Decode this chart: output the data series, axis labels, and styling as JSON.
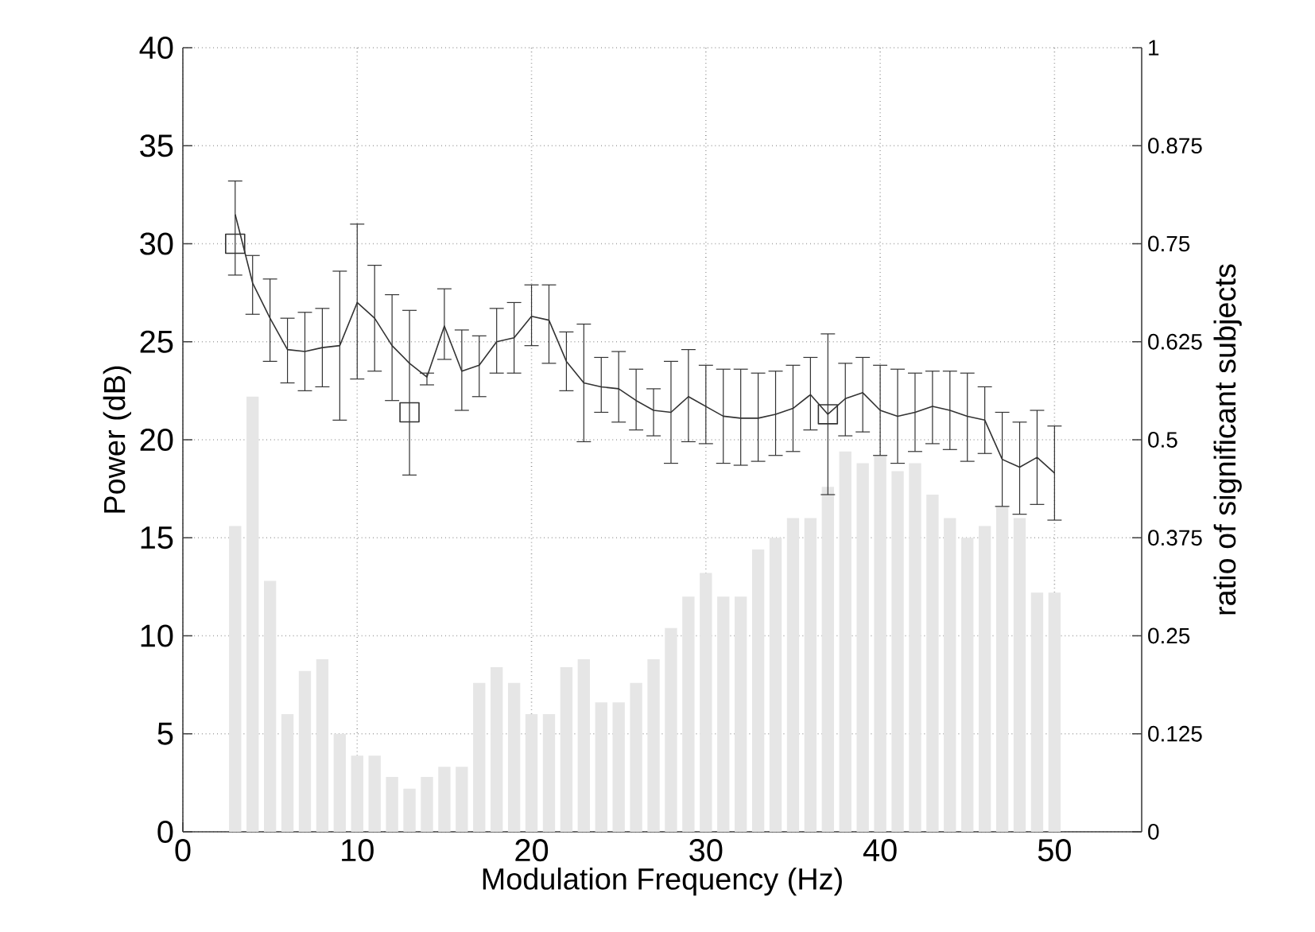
{
  "chart_data": {
    "type": "line",
    "xlabel": "Modulation Frequency (Hz)",
    "ylabel": "Power (dB)",
    "y2label": "ratio of significant subjects",
    "xlim": [
      0,
      55
    ],
    "xticks": [
      0,
      10,
      20,
      30,
      40,
      50
    ],
    "ylim": [
      0,
      40
    ],
    "yticks": [
      0,
      5,
      10,
      15,
      20,
      25,
      30,
      35,
      40
    ],
    "y2lim": [
      0,
      1
    ],
    "y2ticks": [
      0,
      0.125,
      0.25,
      0.375,
      0.5,
      0.625,
      0.75,
      0.875,
      1
    ],
    "grid": true,
    "series": [
      {
        "type": "bar",
        "axis": "y2",
        "color": "#e6e6e6",
        "x": [
          3,
          4,
          5,
          6,
          7,
          8,
          9,
          10,
          11,
          12,
          13,
          14,
          15,
          16,
          17,
          18,
          19,
          20,
          21,
          22,
          23,
          24,
          25,
          26,
          27,
          28,
          29,
          30,
          31,
          32,
          33,
          34,
          35,
          36,
          37,
          38,
          39,
          40,
          41,
          42,
          43,
          44,
          45,
          46,
          47,
          48,
          49,
          50
        ],
        "values": [
          0.39,
          0.555,
          0.32,
          0.15,
          0.205,
          0.22,
          0.125,
          0.097,
          0.097,
          0.07,
          0.055,
          0.07,
          0.083,
          0.083,
          0.19,
          0.21,
          0.19,
          0.15,
          0.15,
          0.21,
          0.22,
          0.165,
          0.165,
          0.19,
          0.22,
          0.26,
          0.3,
          0.33,
          0.3,
          0.3,
          0.36,
          0.375,
          0.4,
          0.4,
          0.44,
          0.485,
          0.47,
          0.48,
          0.46,
          0.47,
          0.43,
          0.4,
          0.375,
          0.39,
          0.415,
          0.4,
          0.305,
          0.305
        ]
      },
      {
        "color": "#333333",
        "marker": "none",
        "line_style": "solid",
        "x": [
          3,
          4,
          5,
          6,
          7,
          8,
          9,
          10,
          11,
          12,
          13,
          14,
          15,
          16,
          17,
          18,
          19,
          20,
          21,
          22,
          23,
          24,
          25,
          26,
          27,
          28,
          29,
          30,
          31,
          32,
          33,
          34,
          35,
          36,
          37,
          38,
          39,
          40,
          41,
          42,
          43,
          44,
          45,
          46,
          47,
          48,
          49,
          50
        ],
        "values": [
          31.5,
          28.0,
          26.2,
          24.6,
          24.5,
          24.7,
          24.8,
          27.0,
          26.2,
          24.8,
          23.9,
          23.2,
          25.8,
          23.5,
          23.8,
          25.0,
          25.2,
          26.3,
          26.1,
          24.0,
          22.9,
          22.7,
          22.6,
          22.0,
          21.5,
          21.4,
          22.2,
          21.7,
          21.2,
          21.1,
          21.1,
          21.3,
          21.6,
          22.3,
          21.3,
          22.1,
          22.4,
          21.5,
          21.2,
          21.4,
          21.7,
          21.5,
          21.2,
          21.0,
          19.0,
          18.6,
          19.1,
          18.3
        ],
        "errors": [
          [
            28.4,
            33.2
          ],
          [
            26.4,
            29.4
          ],
          [
            24.0,
            28.2
          ],
          [
            22.9,
            26.2
          ],
          [
            22.5,
            26.5
          ],
          [
            22.7,
            26.7
          ],
          [
            21.0,
            28.6
          ],
          [
            23.1,
            31.0
          ],
          [
            23.5,
            28.9
          ],
          [
            22.0,
            27.4
          ],
          [
            18.2,
            26.6
          ],
          [
            22.8,
            23.4
          ],
          [
            24.1,
            27.7
          ],
          [
            21.5,
            25.6
          ],
          [
            22.2,
            25.3
          ],
          [
            23.4,
            26.7
          ],
          [
            23.4,
            27.0
          ],
          [
            24.8,
            27.9
          ],
          [
            23.9,
            27.9
          ],
          [
            22.5,
            25.5
          ],
          [
            19.9,
            25.9
          ],
          [
            21.4,
            24.2
          ],
          [
            20.9,
            24.5
          ],
          [
            20.5,
            23.6
          ],
          [
            20.2,
            22.6
          ],
          [
            18.8,
            24.0
          ],
          [
            19.9,
            24.6
          ],
          [
            19.8,
            23.8
          ],
          [
            18.8,
            23.6
          ],
          [
            18.7,
            23.6
          ],
          [
            18.9,
            23.4
          ],
          [
            19.2,
            23.5
          ],
          [
            19.4,
            23.8
          ],
          [
            20.5,
            24.2
          ],
          [
            17.2,
            25.4
          ],
          [
            20.2,
            23.9
          ],
          [
            20.4,
            24.2
          ],
          [
            19.2,
            23.8
          ],
          [
            18.8,
            23.6
          ],
          [
            19.4,
            23.4
          ],
          [
            19.8,
            23.5
          ],
          [
            19.5,
            23.5
          ],
          [
            18.9,
            23.4
          ],
          [
            19.3,
            22.7
          ],
          [
            16.6,
            21.4
          ],
          [
            16.2,
            20.9
          ],
          [
            16.7,
            21.5
          ],
          [
            15.9,
            20.7
          ]
        ]
      },
      {
        "type": "scatter",
        "color": "#333333",
        "marker": "square",
        "x": [
          3,
          13,
          37
        ],
        "values": [
          30.0,
          21.4,
          21.3
        ]
      }
    ]
  }
}
